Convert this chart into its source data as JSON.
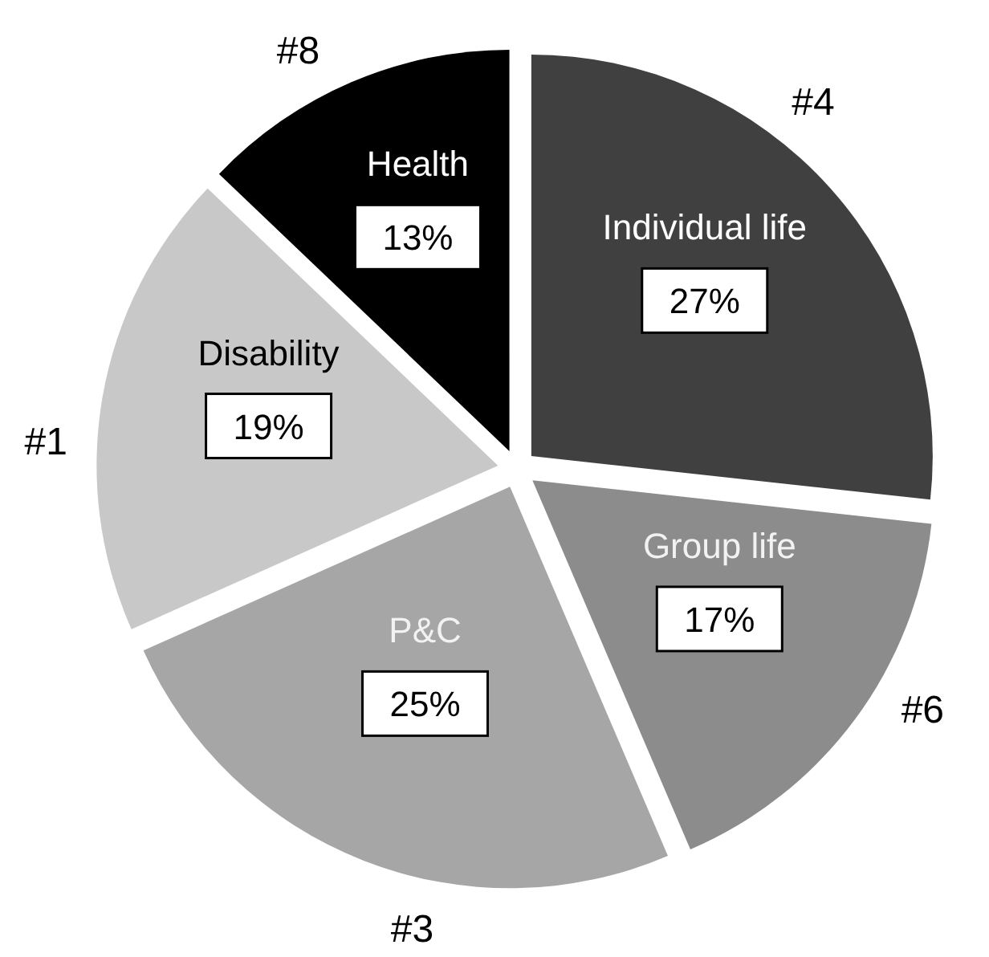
{
  "chart_data": {
    "type": "pie",
    "categories": [
      "Individual life",
      "Group life",
      "P&C",
      "Disability",
      "Health"
    ],
    "values": [
      27,
      17,
      25,
      19,
      13
    ],
    "colors": [
      "#404040",
      "#8c8c8c",
      "#a6a6a6",
      "#c8c8c8",
      "#000000"
    ],
    "value_labels": [
      "27%",
      "17%",
      "25%",
      "19%",
      "13%"
    ],
    "annotations": [
      "#4",
      "#6",
      "#3",
      "#1",
      "#8"
    ]
  }
}
